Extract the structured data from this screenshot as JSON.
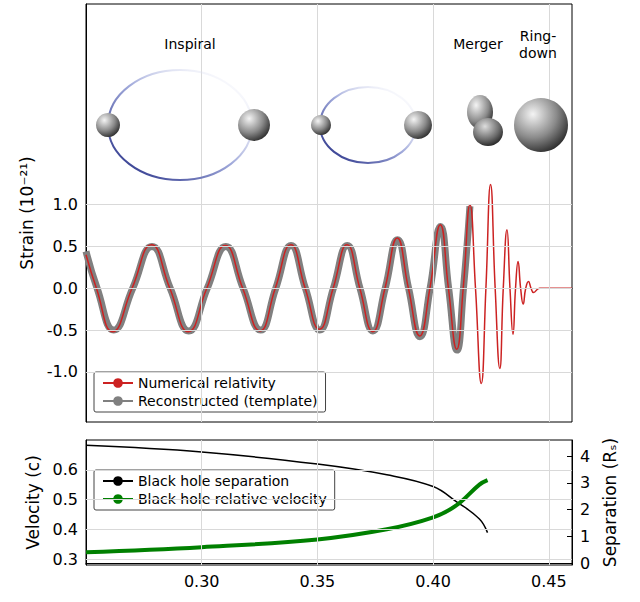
{
  "chart_data": [
    {
      "type": "line",
      "ylabel": "Strain (10⁻²¹)",
      "annotations": [
        "Inspiral",
        "Merger",
        "Ring-down"
      ],
      "xlim": [
        0.25,
        0.46
      ],
      "xticks": [
        {
          "value": 0.3,
          "label": "0.30"
        },
        {
          "value": 0.35,
          "label": "0.35"
        },
        {
          "value": 0.4,
          "label": "0.40"
        },
        {
          "value": 0.45,
          "label": "0.45"
        }
      ],
      "ylim": [
        -1.6,
        3.4
      ],
      "yticks": [
        {
          "value": -1.0,
          "label": "-1.0"
        },
        {
          "value": -0.5,
          "label": "-0.5"
        },
        {
          "value": 0,
          "label": "0.0"
        },
        {
          "value": 0.5,
          "label": "0.5"
        },
        {
          "value": 1.0,
          "label": "1.0"
        }
      ],
      "tick_labels": "y",
      "grid": true,
      "legend": "lower left",
      "series": [
        {
          "name": "Numerical relativity",
          "color": "#cc2222",
          "x": [
            0.25,
            0.2545,
            0.2615,
            0.2699,
            0.2783,
            0.2862,
            0.2942,
            0.3022,
            0.3102,
            0.3177,
            0.3252,
            0.3318,
            0.3385,
            0.3447,
            0.3509,
            0.3568,
            0.3628,
            0.3683,
            0.3739,
            0.3792,
            0.3845,
            0.3893,
            0.3942,
            0.3986,
            0.4031,
            0.4066,
            0.4102,
            0.413,
            0.4159,
            0.4183,
            0.4208,
            0.4228,
            0.4248,
            0.4268,
            0.4288,
            0.4303,
            0.4319,
            0.4332,
            0.4345,
            0.4356,
            0.4367,
            0.4378,
            0.4389,
            0.44,
            0.4412,
            0.4423,
            0.4434,
            0.446,
            0.46
          ],
          "values": [
            0.4,
            0,
            -0.52,
            0,
            0.52,
            0,
            -0.52,
            0,
            0.51,
            0,
            -0.51,
            0,
            0.52,
            0,
            -0.49,
            0,
            0.52,
            0,
            -0.52,
            0,
            0.6,
            0,
            -0.57,
            0,
            0.76,
            0,
            -0.73,
            0,
            1.0,
            0,
            -1.14,
            0,
            1.24,
            0,
            -0.96,
            0,
            0.7,
            0,
            -0.55,
            0,
            0.32,
            0,
            -0.19,
            0,
            0.08,
            0,
            -0.05,
            0,
            0
          ]
        },
        {
          "name": "Reconstructed (template)",
          "color": "#808080",
          "x": [
            0.25,
            0.2548,
            0.262,
            0.2702,
            0.2785,
            0.2864,
            0.2944,
            0.3024,
            0.3104,
            0.3179,
            0.3254,
            0.332,
            0.3386,
            0.3448,
            0.351,
            0.3569,
            0.3629,
            0.3684,
            0.374,
            0.3793,
            0.3846,
            0.3894,
            0.3943,
            0.3987,
            0.4032,
            0.4067,
            0.4103,
            0.4131,
            0.4159
          ],
          "values": [
            0.44,
            0,
            -0.5,
            0,
            0.5,
            0,
            -0.51,
            0,
            0.5,
            0,
            -0.5,
            0,
            0.51,
            0,
            -0.5,
            0,
            0.51,
            0,
            -0.51,
            0,
            0.58,
            0,
            -0.58,
            0,
            0.74,
            0,
            -0.74,
            0,
            0.98
          ]
        }
      ]
    },
    {
      "type": "line",
      "ylabel": "Velocity (c)",
      "y2label": "Separation (Rₛ)",
      "xlim": [
        0.25,
        0.46
      ],
      "xticks": [
        {
          "value": 0.3,
          "label": "0.30"
        },
        {
          "value": 0.35,
          "label": "0.35"
        },
        {
          "value": 0.4,
          "label": "0.40"
        },
        {
          "value": 0.45,
          "label": "0.45"
        }
      ],
      "ylim": [
        0.28,
        0.7
      ],
      "yticks": [
        0.3,
        0.4,
        0.5,
        0.6
      ],
      "y2lim": [
        -0.07,
        4.6
      ],
      "y2ticks": [
        0,
        1,
        2,
        3,
        4
      ],
      "grid": true,
      "legend": "upper left",
      "series": [
        {
          "name": "Black hole separation",
          "color": "#000000",
          "axis": "y2",
          "x": [
            0.25,
            0.3,
            0.35,
            0.38,
            0.4,
            0.41,
            0.42,
            0.4235
          ],
          "values": [
            4.4,
            4.15,
            3.7,
            3.3,
            2.86,
            2.3,
            1.65,
            1.14
          ]
        },
        {
          "name": "Black hole relative velocity",
          "color": "#008000",
          "x": [
            0.25,
            0.3,
            0.35,
            0.38,
            0.4,
            0.41,
            0.42,
            0.4235
          ],
          "values": [
            0.323,
            0.34,
            0.366,
            0.4,
            0.44,
            0.48,
            0.55,
            0.565
          ]
        }
      ]
    }
  ]
}
